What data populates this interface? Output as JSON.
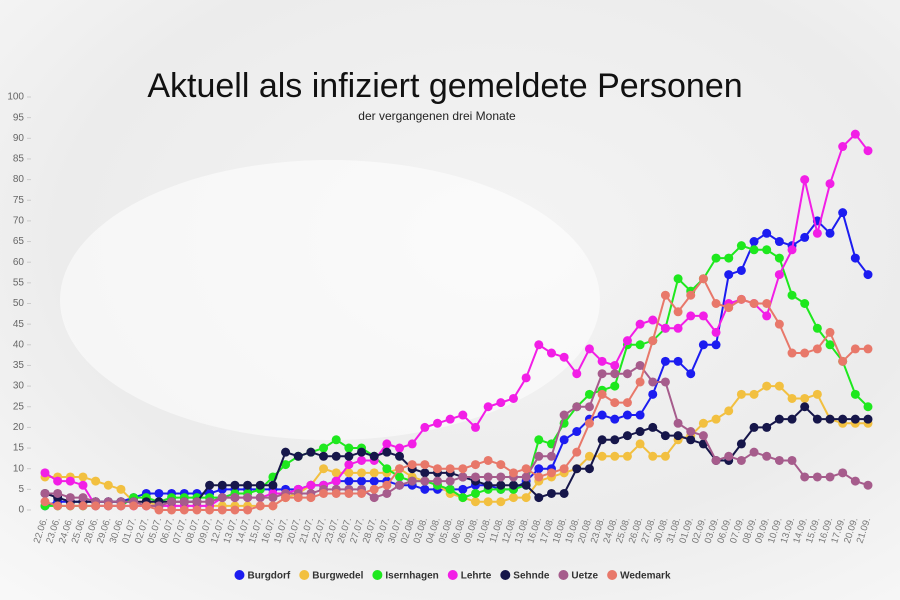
{
  "chart_data": {
    "type": "line",
    "title": "Aktuell als infiziert gemeldete Personen",
    "subtitle": "der vergangenen drei Monate",
    "categories": [
      "22.06.",
      "23.06.",
      "24.06.",
      "25.06.",
      "28.06.",
      "29.06.",
      "30.06.",
      "01.07.",
      "02.07.",
      "05.07.",
      "06.07.",
      "07.07.",
      "08.07.",
      "09.07.",
      "12.07.",
      "13.07.",
      "14.07.",
      "15.07.",
      "16.07.",
      "19.07.",
      "20.07.",
      "21.07.",
      "22.07.",
      "23.07.",
      "26.07.",
      "27.07.",
      "28.07.",
      "29.07.",
      "30.07.",
      "02.08.",
      "03.08.",
      "04.08.",
      "05.08.",
      "06.08.",
      "09.08.",
      "10.08.",
      "11.08.",
      "12.08.",
      "13.08.",
      "16.08.",
      "17.08.",
      "18.08.",
      "19.08.",
      "20.08.",
      "23.08.",
      "24.08.",
      "25.08.",
      "26.08.",
      "27.08.",
      "30.08.",
      "31.08.",
      "01.09.",
      "02.09.",
      "03.09.",
      "06.09.",
      "07.09.",
      "08.09.",
      "09.09.",
      "10.09.",
      "13.09.",
      "14.09.",
      "15.09.",
      "16.09.",
      "17.09.",
      "20.09.",
      "21.09."
    ],
    "series": [
      {
        "name": "Burgdorf",
        "color": "#1c1cf0",
        "values": [
          1,
          2,
          2,
          2,
          2,
          2,
          2,
          3,
          4,
          4,
          4,
          4,
          4,
          4,
          5,
          5,
          5,
          5,
          5,
          5,
          5,
          6,
          6,
          7,
          7,
          7,
          7,
          7,
          6,
          6,
          5,
          5,
          5,
          5,
          6,
          6,
          5,
          5,
          7,
          10,
          10,
          17,
          19,
          22,
          23,
          22,
          23,
          23,
          28,
          36,
          36,
          33,
          40,
          40,
          57,
          58,
          65,
          67,
          65,
          64,
          66,
          70,
          67,
          72,
          61,
          57
        ]
      },
      {
        "name": "Burgwedel",
        "color": "#f2c040",
        "values": [
          8,
          8,
          8,
          8,
          7,
          6,
          5,
          2,
          2,
          1,
          1,
          1,
          1,
          1,
          1,
          1,
          1,
          1,
          1,
          3,
          4,
          6,
          10,
          9,
          9,
          9,
          9,
          9,
          10,
          8,
          7,
          6,
          4,
          3,
          2,
          2,
          2,
          3,
          3,
          7,
          8,
          9,
          10,
          13,
          13,
          13,
          13,
          16,
          13,
          13,
          17,
          18,
          21,
          22,
          24,
          28,
          28,
          30,
          30,
          27,
          27,
          28,
          22,
          21,
          21,
          21
        ]
      },
      {
        "name": "Isernhagen",
        "color": "#1ee81e",
        "values": [
          1,
          1,
          1,
          1,
          1,
          1,
          1,
          3,
          3,
          2,
          3,
          3,
          3,
          3,
          3,
          4,
          4,
          5,
          8,
          11,
          13,
          14,
          15,
          17,
          15,
          15,
          13,
          10,
          8,
          7,
          7,
          6,
          5,
          3,
          4,
          5,
          5,
          5,
          6,
          17,
          16,
          21,
          25,
          28,
          29,
          30,
          40,
          40,
          41,
          44,
          56,
          53,
          56,
          61,
          61,
          64,
          63,
          63,
          61,
          52,
          50,
          44,
          40,
          36,
          28,
          25
        ]
      },
      {
        "name": "Lehrte",
        "color": "#f21ee6",
        "values": [
          9,
          7,
          7,
          6,
          1,
          1,
          1,
          1,
          1,
          1,
          1,
          1,
          1,
          1,
          3,
          3,
          3,
          3,
          4,
          4,
          5,
          6,
          6,
          7,
          11,
          12,
          12,
          16,
          15,
          16,
          20,
          21,
          22,
          23,
          20,
          25,
          26,
          27,
          32,
          40,
          38,
          37,
          33,
          39,
          36,
          35,
          41,
          45,
          46,
          44,
          44,
          47,
          47,
          43,
          50,
          51,
          50,
          47,
          57,
          63,
          80,
          67,
          79,
          88,
          91,
          87
        ]
      },
      {
        "name": "Sehnde",
        "color": "#16164a",
        "values": [
          4,
          3,
          2,
          2,
          2,
          2,
          2,
          2,
          2,
          2,
          2,
          2,
          2,
          6,
          6,
          6,
          6,
          6,
          6,
          14,
          13,
          14,
          13,
          13,
          13,
          14,
          13,
          14,
          13,
          10,
          9,
          9,
          9,
          8,
          7,
          6,
          6,
          6,
          6,
          3,
          4,
          4,
          10,
          10,
          17,
          17,
          18,
          19,
          20,
          18,
          18,
          17,
          16,
          12,
          12,
          16,
          20,
          20,
          22,
          22,
          25,
          22,
          22,
          22,
          22,
          22
        ]
      },
      {
        "name": "Uetze",
        "color": "#a65c8c",
        "values": [
          4,
          4,
          3,
          3,
          2,
          2,
          2,
          2,
          1,
          1,
          2,
          2,
          2,
          2,
          3,
          3,
          3,
          3,
          3,
          4,
          4,
          4,
          5,
          5,
          5,
          5,
          3,
          4,
          6,
          7,
          7,
          7,
          7,
          8,
          8,
          8,
          8,
          8,
          8,
          13,
          13,
          23,
          25,
          25,
          33,
          33,
          33,
          35,
          31,
          31,
          21,
          19,
          18,
          12,
          13,
          12,
          14,
          13,
          12,
          12,
          8,
          8,
          8,
          9,
          7,
          6
        ]
      },
      {
        "name": "Wedemark",
        "color": "#e8786a",
        "values": [
          2,
          1,
          1,
          1,
          1,
          1,
          1,
          1,
          1,
          0,
          0,
          0,
          0,
          0,
          0,
          0,
          0,
          1,
          1,
          3,
          3,
          3,
          4,
          4,
          4,
          4,
          5,
          6,
          10,
          11,
          11,
          10,
          10,
          10,
          11,
          12,
          11,
          9,
          10,
          8,
          9,
          10,
          14,
          21,
          28,
          26,
          26,
          31,
          41,
          52,
          48,
          52,
          56,
          50,
          49,
          51,
          50,
          50,
          45,
          38,
          38,
          39,
          43,
          36,
          39,
          39
        ]
      }
    ],
    "ylim": [
      0,
      100
    ],
    "yticks": [
      0,
      5,
      10,
      15,
      20,
      25,
      30,
      35,
      40,
      45,
      50,
      55,
      60,
      65,
      70,
      75,
      80,
      85,
      90,
      95,
      100
    ]
  }
}
